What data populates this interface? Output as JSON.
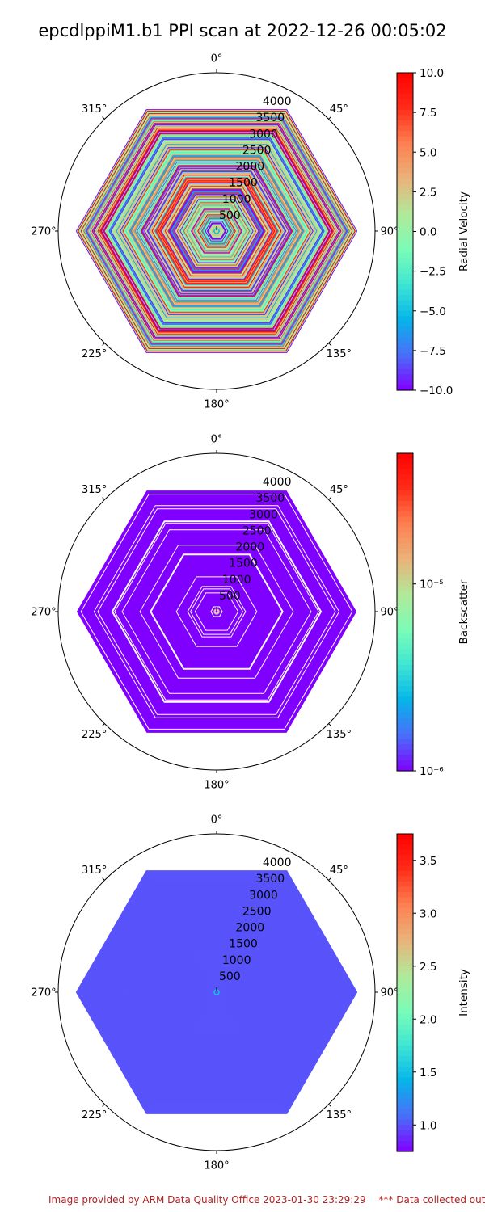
{
  "title": "epcdlppiM1.b1 PPI scan at 2022-12-26 00:05:02",
  "footer": {
    "provided_by": "Image provided by ARM Data Quality Office 2023-01-30 23:29:29",
    "note": "*** Data collected outsid"
  },
  "colors": {
    "rainbow": [
      "#8000ff",
      "#4a6efa",
      "#05b5ea",
      "#3ee6d2",
      "#7bfdb7",
      "#b2e89a",
      "#e9b37a",
      "#ff7f51",
      "#ff2c19",
      "#ff0000"
    ],
    "background_mask": "#ffffff",
    "axis_line": "#000000"
  },
  "chart_data": [
    {
      "type": "heatmap",
      "projection": "polar",
      "theta_zero": "top",
      "theta_direction": "clockwise",
      "theta_ticks": [
        "0°",
        "45°",
        "90°",
        "135°",
        "180°",
        "225°",
        "270°",
        "315°"
      ],
      "r_ticks": [
        "500",
        "1000",
        "1500",
        "2000",
        "2500",
        "3000",
        "3500",
        "4000"
      ],
      "r_tick_values": [
        500,
        1000,
        1500,
        2000,
        2500,
        3000,
        3500,
        4000
      ],
      "rlim": [
        0,
        4500
      ],
      "scan_sectors": 6,
      "colorbar": {
        "label": "Radial Velocity",
        "scale": "linear",
        "range": [
          -10.0,
          10.0
        ],
        "ticks": [
          "10.0",
          "7.5",
          "5.0",
          "2.5",
          "0.0",
          "−2.5",
          "−5.0",
          "−7.5",
          "−10.0"
        ],
        "tick_values": [
          10.0,
          7.5,
          5.0,
          2.5,
          0.0,
          -2.5,
          -5.0,
          -7.5,
          -10.0
        ]
      },
      "pattern": "striped",
      "value_mix": [
        -10,
        -8,
        -6,
        -3,
        -1,
        0,
        0,
        1,
        1,
        2,
        4,
        6,
        8,
        10
      ]
    },
    {
      "type": "heatmap",
      "projection": "polar",
      "theta_zero": "top",
      "theta_direction": "clockwise",
      "theta_ticks": [
        "0°",
        "45°",
        "90°",
        "135°",
        "180°",
        "225°",
        "270°",
        "315°"
      ],
      "r_ticks": [
        "500",
        "1000",
        "1500",
        "2000",
        "2500",
        "3000",
        "3500",
        "4000"
      ],
      "r_tick_values": [
        500,
        1000,
        1500,
        2000,
        2500,
        3000,
        3500,
        4000
      ],
      "rlim": [
        0,
        4500
      ],
      "scan_sectors": 6,
      "colorbar": {
        "label": "Backscatter",
        "scale": "log",
        "range": [
          1e-06,
          5e-05
        ],
        "ticks": [
          "10⁻⁵",
          "10⁻⁶"
        ],
        "tick_values": [
          1e-05,
          1e-06
        ]
      },
      "pattern": "gapped",
      "fill_value": 1e-06
    },
    {
      "type": "heatmap",
      "projection": "polar",
      "theta_zero": "top",
      "theta_direction": "clockwise",
      "theta_ticks": [
        "0°",
        "45°",
        "90°",
        "135°",
        "180°",
        "225°",
        "270°",
        "315°"
      ],
      "r_ticks": [
        "500",
        "1000",
        "1500",
        "2000",
        "2500",
        "3000",
        "3500",
        "4000"
      ],
      "r_tick_values": [
        500,
        1000,
        1500,
        2000,
        2500,
        3000,
        3500,
        4000
      ],
      "rlim": [
        0,
        4500
      ],
      "scan_sectors": 6,
      "colorbar": {
        "label": "Intensity",
        "scale": "linear",
        "range": [
          0.75,
          3.75
        ],
        "ticks": [
          "3.5",
          "3.0",
          "2.5",
          "2.0",
          "1.5",
          "1.0"
        ],
        "tick_values": [
          3.5,
          3.0,
          2.5,
          2.0,
          1.5,
          1.0
        ]
      },
      "pattern": "solid",
      "fill_value": 1.0
    }
  ]
}
